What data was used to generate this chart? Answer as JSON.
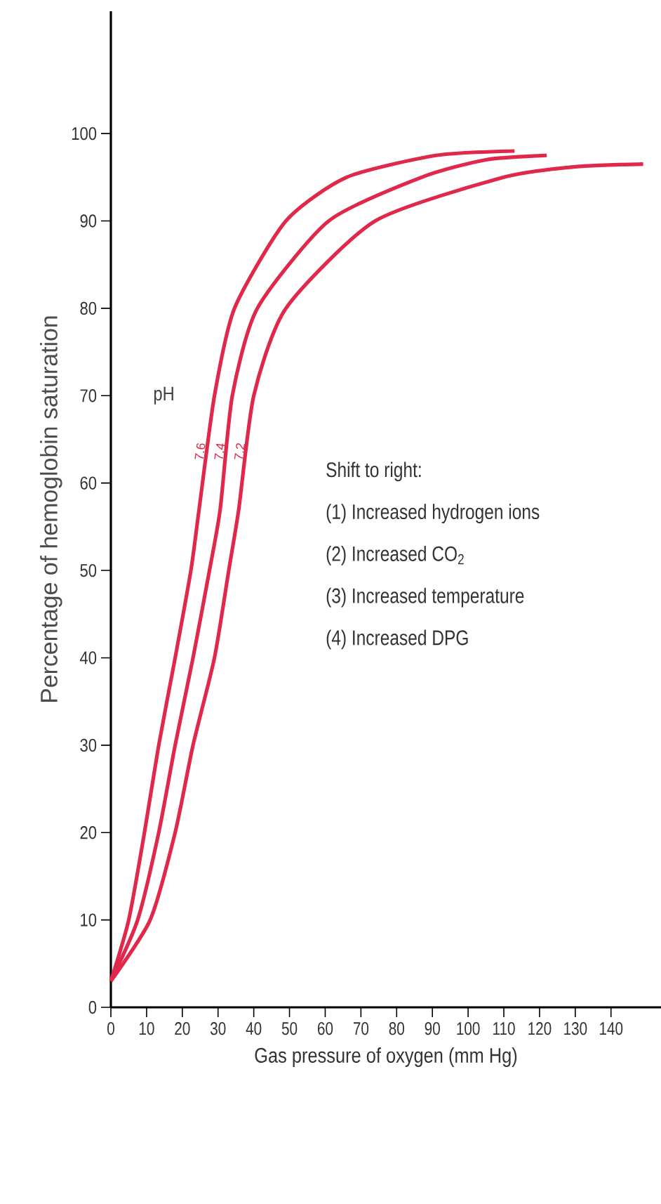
{
  "chart_data": {
    "type": "line",
    "xlabel": "Gas pressure of oxygen (mm Hg)",
    "ylabel": "Percentage of hemoglobin saturation",
    "xlim": [
      0,
      154
    ],
    "ylim": [
      0,
      114
    ],
    "xticks": [
      0,
      10,
      20,
      30,
      40,
      50,
      60,
      70,
      80,
      90,
      100,
      110,
      120,
      130,
      140
    ],
    "yticks": [
      0,
      10,
      20,
      30,
      40,
      50,
      60,
      70,
      80,
      90,
      100
    ],
    "series": [
      {
        "name": "7.6",
        "color": "#e0284a",
        "x": [
          0,
          5,
          9.4,
          13.4,
          18,
          22.4,
          24.7,
          29,
          34.6,
          49,
          66,
          91,
          113
        ],
        "values": [
          3,
          10,
          20,
          30,
          40,
          50,
          57,
          70,
          80,
          90,
          95,
          97.5,
          98
        ]
      },
      {
        "name": "7.4",
        "color": "#e0284a",
        "x": [
          0,
          7.5,
          13.4,
          18,
          23,
          27.6,
          30.6,
          34,
          41,
          61,
          87,
          105,
          122
        ],
        "values": [
          3,
          10,
          20,
          30,
          40,
          50,
          57,
          70,
          80,
          90,
          95,
          97,
          97.5
        ]
      },
      {
        "name": "7.2",
        "color": "#e0284a",
        "x": [
          0,
          11,
          18,
          23,
          29,
          33,
          35.8,
          40,
          49,
          74,
          110,
          130,
          149
        ],
        "values": [
          3,
          10,
          20,
          30,
          40,
          50,
          57,
          70,
          80,
          90,
          95,
          96.2,
          96.5
        ]
      }
    ],
    "annotations": [
      "pH",
      "Shift to right:",
      "(1) Increased hydrogen ions",
      "(2) Increased CO$_{2}$",
      "(3) Increased temperature",
      "(4) Increased DPG"
    ]
  }
}
